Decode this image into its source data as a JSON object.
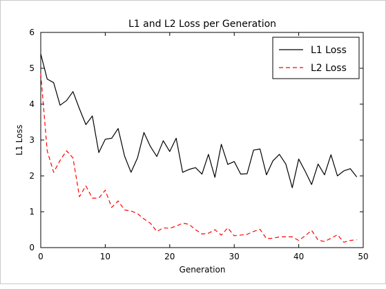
{
  "chart_data": {
    "type": "line",
    "title": "L1 and L2 Loss per Generation",
    "xlabel": "Generation",
    "ylabel": "L1 Loss",
    "xlim": [
      0,
      50
    ],
    "ylim": [
      0,
      6
    ],
    "xticks": [
      "0",
      "10",
      "20",
      "30",
      "40",
      "50"
    ],
    "yticks": [
      "0",
      "1",
      "2",
      "3",
      "4",
      "5",
      "6"
    ],
    "grid": false,
    "legend_position": "top-right",
    "x": [
      0,
      1,
      2,
      3,
      4,
      5,
      6,
      7,
      8,
      9,
      10,
      11,
      12,
      13,
      14,
      15,
      16,
      17,
      18,
      19,
      20,
      21,
      22,
      23,
      24,
      25,
      26,
      27,
      28,
      29,
      30,
      31,
      32,
      33,
      34,
      35,
      36,
      37,
      38,
      39,
      40,
      41,
      42,
      43,
      44,
      45,
      46,
      47,
      48,
      49
    ],
    "series": [
      {
        "name": "L1 Loss",
        "color": "#000000",
        "dash": "solid",
        "values": [
          5.4,
          4.7,
          4.6,
          3.97,
          4.1,
          4.35,
          3.87,
          3.43,
          3.67,
          2.65,
          3.02,
          3.05,
          3.32,
          2.55,
          2.1,
          2.5,
          3.21,
          2.82,
          2.54,
          2.98,
          2.68,
          3.05,
          2.1,
          2.18,
          2.23,
          2.05,
          2.6,
          1.96,
          2.88,
          2.32,
          2.4,
          2.05,
          2.06,
          2.72,
          2.75,
          2.03,
          2.42,
          2.6,
          2.33,
          1.67,
          2.47,
          2.13,
          1.76,
          2.33,
          2.03,
          2.59,
          2.0,
          2.14,
          2.2,
          1.97
        ]
      },
      {
        "name": "L2 Loss",
        "color": "#ff0000",
        "dash": "dashed",
        "values": [
          4.85,
          2.7,
          2.1,
          2.43,
          2.7,
          2.5,
          1.42,
          1.72,
          1.38,
          1.38,
          1.6,
          1.12,
          1.3,
          1.05,
          1.02,
          0.95,
          0.8,
          0.68,
          0.45,
          0.55,
          0.54,
          0.6,
          0.68,
          0.65,
          0.5,
          0.38,
          0.4,
          0.5,
          0.35,
          0.55,
          0.33,
          0.35,
          0.37,
          0.45,
          0.51,
          0.25,
          0.26,
          0.3,
          0.3,
          0.3,
          0.2,
          0.33,
          0.48,
          0.21,
          0.17,
          0.26,
          0.36,
          0.15,
          0.2,
          0.22
        ]
      }
    ]
  }
}
